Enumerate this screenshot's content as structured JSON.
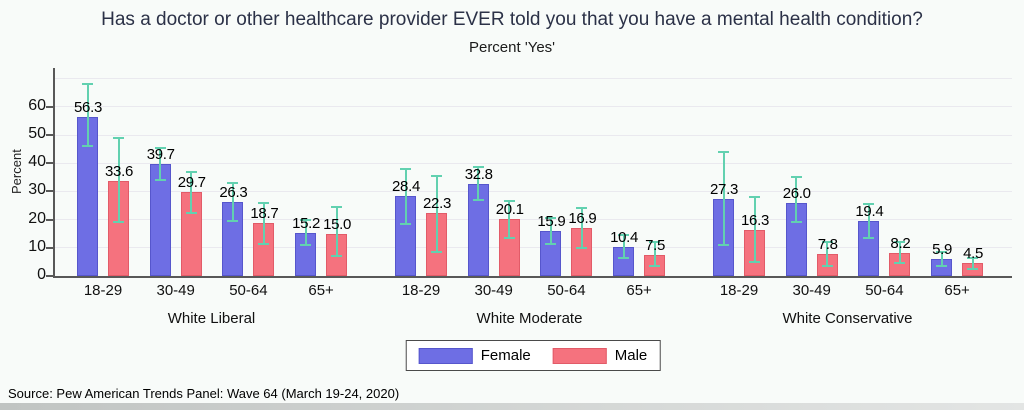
{
  "header": {
    "title": "Has a doctor or other healthcare provider EVER told you that you have a mental health condition?",
    "subtitle": "Percent 'Yes'"
  },
  "footer": {
    "source": "Source: Pew American Trends Panel: Wave 64 (March 19-24, 2020)"
  },
  "colors": {
    "female": "#6e6ee4",
    "female_border": "#5656cc",
    "male": "#f5727e",
    "male_border": "#e25b68",
    "error_bar": "#62d1b0",
    "title_text": "#2b3147"
  },
  "chart_data": {
    "type": "bar",
    "title": "Has a doctor or other healthcare provider EVER told you that you have a mental health condition?",
    "subtitle": "Percent 'Yes'",
    "ylabel": "Percent",
    "xlabel": "",
    "ylim": [
      0,
      73
    ],
    "yticks": [
      0,
      10,
      20,
      30,
      40,
      50,
      60
    ],
    "ygrid": [
      10,
      20,
      30,
      40,
      50,
      60,
      70
    ],
    "grid": true,
    "error_bars": true,
    "legend_position": "bottom-center",
    "groups": [
      "White Liberal",
      "White Moderate",
      "White Conservative"
    ],
    "categories": [
      "18-29",
      "30-49",
      "50-64",
      "65+"
    ],
    "series": [
      {
        "name": "Female",
        "color": "#6e6ee4",
        "values": [
          [
            56.3,
            39.7,
            26.3,
            15.2
          ],
          [
            28.4,
            32.8,
            15.9,
            10.4
          ],
          [
            27.3,
            26.0,
            19.4,
            5.9
          ]
        ],
        "ci": [
          [
            [
              46,
              68
            ],
            [
              34,
              45.5
            ],
            [
              19.5,
              33
            ],
            [
              11,
              20
            ]
          ],
          [
            [
              18.5,
              38
            ],
            [
              27,
              38.5
            ],
            [
              11.5,
              20.5
            ],
            [
              6.5,
              14.5
            ]
          ],
          [
            [
              11,
              44
            ],
            [
              19,
              35
            ],
            [
              13.5,
              25.5
            ],
            [
              3.5,
              8.5
            ]
          ]
        ]
      },
      {
        "name": "Male",
        "color": "#f5727e",
        "values": [
          [
            33.6,
            29.7,
            18.7,
            15.0
          ],
          [
            22.3,
            20.1,
            16.9,
            7.5
          ],
          [
            16.3,
            7.8,
            8.2,
            4.5
          ]
        ],
        "ci": [
          [
            [
              19,
              49
            ],
            [
              22.5,
              37
            ],
            [
              11.5,
              26
            ],
            [
              7,
              24.5
            ]
          ],
          [
            [
              8.5,
              35.5
            ],
            [
              13.5,
              26.5
            ],
            [
              10,
              24
            ],
            [
              3.5,
              12
            ]
          ],
          [
            [
              5,
              28
            ],
            [
              3.5,
              12
            ],
            [
              4.5,
              12
            ],
            [
              2.5,
              6.5
            ]
          ]
        ]
      }
    ]
  }
}
